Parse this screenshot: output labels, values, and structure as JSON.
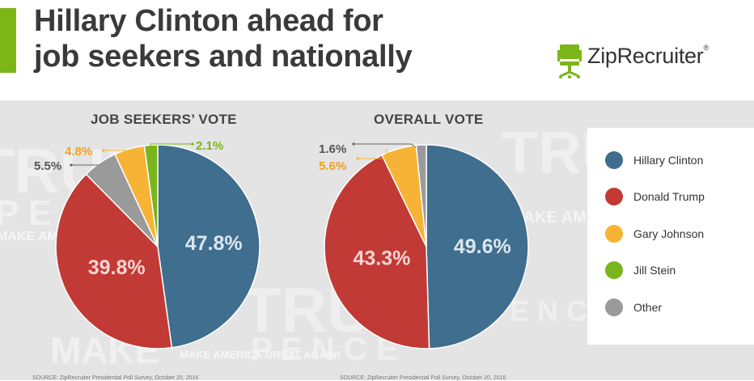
{
  "headline": {
    "line1": "Hillary Clinton ahead for",
    "line2": "job seekers and nationally"
  },
  "brand": {
    "name": "ZipRecruiter",
    "registered": "®",
    "icon": "chair-icon",
    "accent_color": "#7cb518"
  },
  "background_words": [
    "TRUMP",
    "P E",
    "MAKE AM",
    "TRUMP",
    "P E N C E",
    "MAKE",
    "TRUMP",
    "MAKE AME",
    "E N C E",
    "MAKE AMERICA GREAT AGAIN!"
  ],
  "legend": {
    "items": [
      {
        "label": "Hillary Clinton",
        "color": "#3f6e8e"
      },
      {
        "label": "Donald Trump",
        "color": "#c23a35"
      },
      {
        "label": "Gary Johnson",
        "color": "#f6b335"
      },
      {
        "label": "Jill Stein",
        "color": "#7ab51d"
      },
      {
        "label": "Other",
        "color": "#9a9a9a"
      }
    ]
  },
  "sources": [
    "SOURCE: ZipRecruiter Presidential Poll Survey, October 20, 2016",
    "SOURCE: ZipRecruiter Presidential Poll Survey, October 20, 2016"
  ],
  "chart_data": [
    {
      "type": "pie",
      "title": "JOB SEEKERS’ VOTE",
      "categories": [
        "Hillary Clinton",
        "Donald Trump",
        "Other",
        "Gary Johnson",
        "Jill Stein"
      ],
      "values": [
        47.8,
        39.8,
        5.5,
        4.8,
        2.1
      ],
      "labels": [
        "47.8%",
        "39.8%",
        "5.5%",
        "4.8%",
        "2.1%"
      ],
      "colors": [
        "#3f6e8e",
        "#c23a35",
        "#9a9a9a",
        "#f6b335",
        "#7ab51d"
      ],
      "label_colors": [
        "#dce6ef",
        "#f6d5d3",
        "#555555",
        "#f0a21e",
        "#79b51c"
      ]
    },
    {
      "type": "pie",
      "title": "OVERALL VOTE",
      "categories": [
        "Hillary Clinton",
        "Donald Trump",
        "Gary Johnson",
        "Other"
      ],
      "values": [
        49.6,
        43.3,
        5.6,
        1.6
      ],
      "labels": [
        "49.6%",
        "43.3%",
        "5.6%",
        "1.6%"
      ],
      "colors": [
        "#3f6e8e",
        "#c23a35",
        "#f6b335",
        "#9a9a9a"
      ],
      "label_colors": [
        "#dce6ef",
        "#f6d5d3",
        "#f0a21e",
        "#555555"
      ]
    }
  ]
}
